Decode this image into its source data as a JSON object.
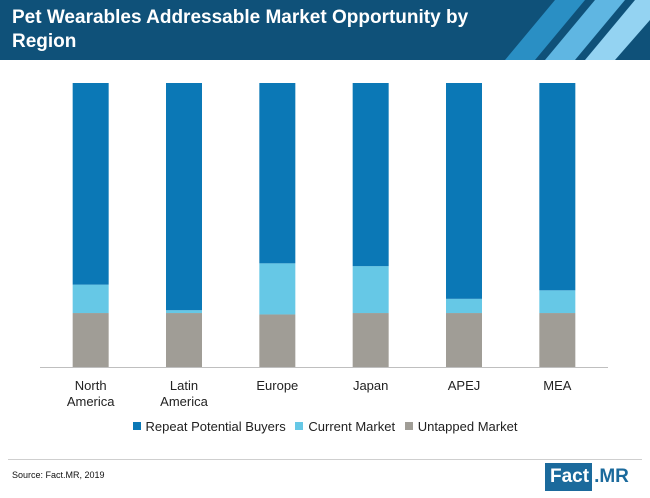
{
  "header": {
    "title": "Pet Wearables Addressable Market Opportunity by Region",
    "bg_color": "#0f5179",
    "stripe_colors": [
      "#2a8fc4",
      "#5fb6e2",
      "#94d3f2"
    ]
  },
  "chart_data": {
    "type": "bar",
    "stacked": true,
    "normalized": true,
    "categories": [
      "North America",
      "Latin America",
      "Europe",
      "Japan",
      "APEJ",
      "MEA"
    ],
    "series": [
      {
        "name": "Untapped Market",
        "color": "#a09d96",
        "values": [
          19,
          19,
          18.5,
          19,
          19,
          19
        ]
      },
      {
        "name": "Current Market",
        "color": "#66c8e6",
        "values": [
          10,
          1,
          18,
          16.5,
          5,
          8
        ]
      },
      {
        "name": "Repeat Potential Buyers",
        "color": "#0b78b6",
        "values": [
          71,
          80,
          63.5,
          64.5,
          76,
          73
        ]
      }
    ],
    "ylim": [
      0,
      100
    ],
    "grid": false,
    "legend_position": "bottom"
  },
  "legend": {
    "items": [
      {
        "label": "Repeat Potential Buyers",
        "color": "#0b78b6"
      },
      {
        "label": "Current Market",
        "color": "#66c8e6"
      },
      {
        "label": "Untapped Market",
        "color": "#a09d96"
      }
    ]
  },
  "footer": {
    "source": "Source: Fact.MR, 2019",
    "logo_left": "Fact",
    "logo_right": ".MR"
  }
}
